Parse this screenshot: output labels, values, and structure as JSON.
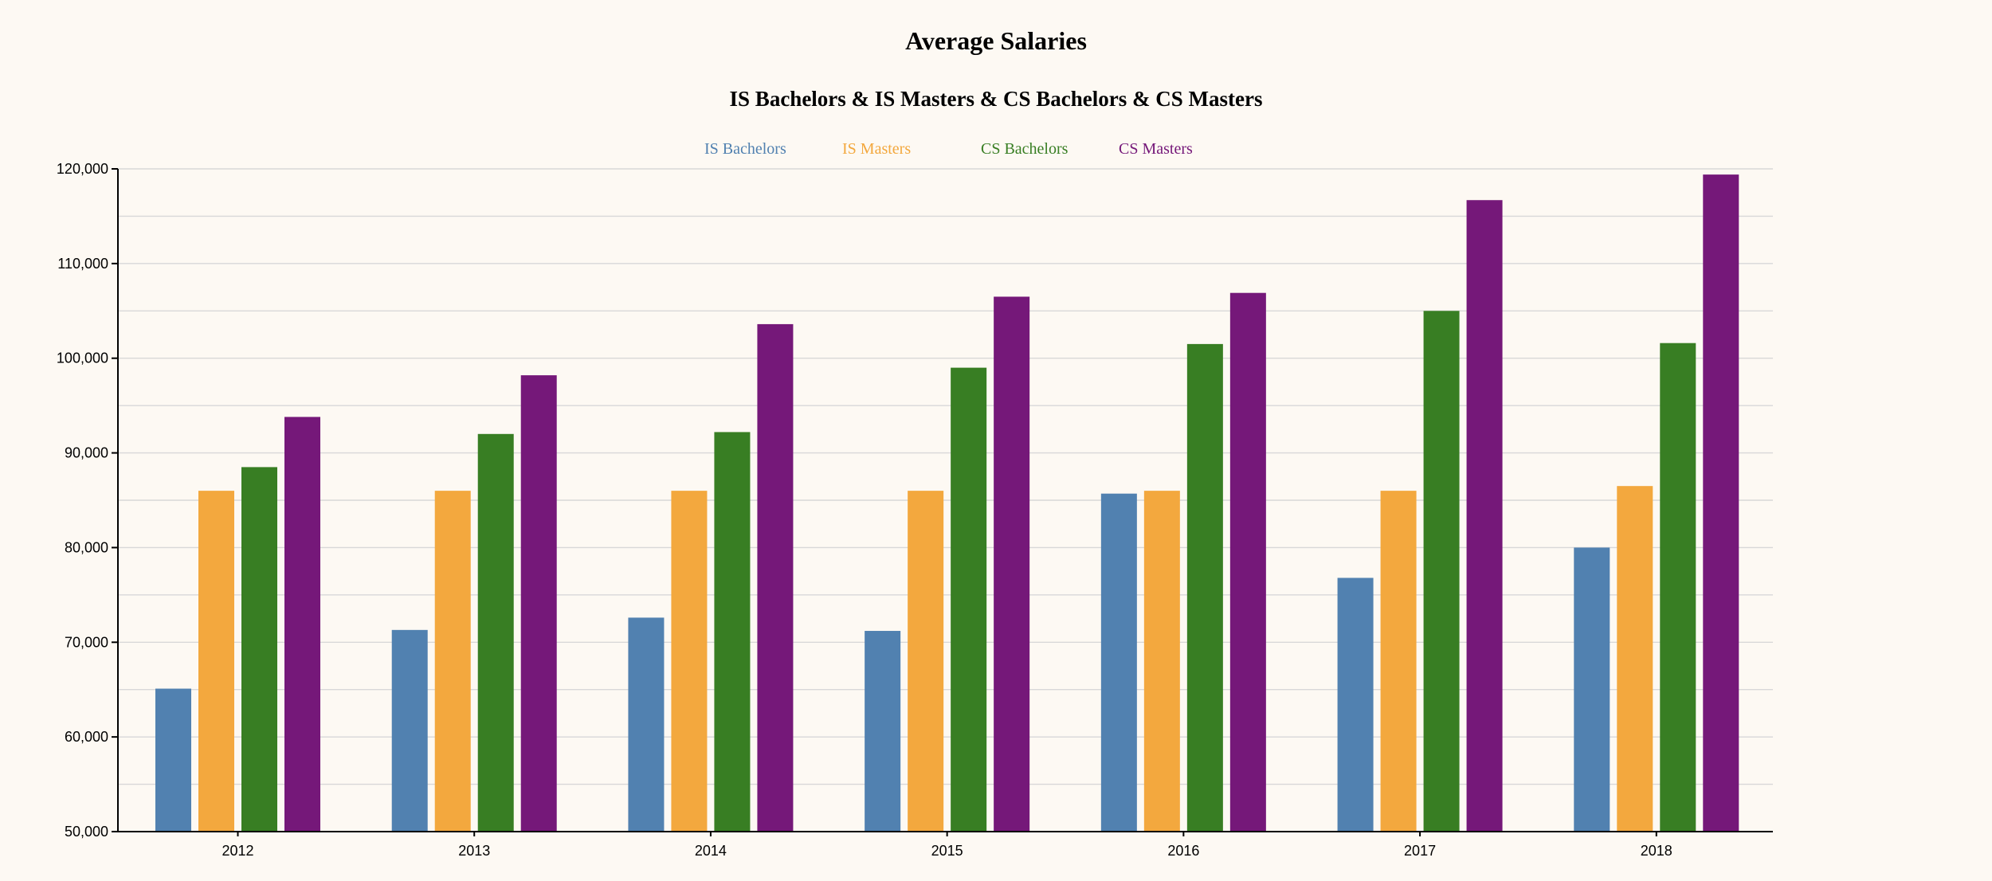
{
  "chart_data": {
    "type": "bar",
    "title": "Average Salaries",
    "subtitle": "IS Bachelors & IS Masters & CS Bachelors & CS Masters",
    "xlabel": "",
    "ylabel": "",
    "categories": [
      "2012",
      "2013",
      "2014",
      "2015",
      "2016",
      "2017",
      "2018"
    ],
    "ylim": [
      50000,
      120000
    ],
    "yticks": [
      50000,
      60000,
      70000,
      80000,
      90000,
      100000,
      110000,
      120000
    ],
    "ytick_labels": [
      "50,000",
      "60,000",
      "70,000",
      "80,000",
      "90,000",
      "100,000",
      "110,000",
      "120,000"
    ],
    "grid": true,
    "legend_position": "top-center",
    "series": [
      {
        "name": "IS Bachelors",
        "color": "#5181b0",
        "values": [
          65100,
          71300,
          72600,
          71200,
          85700,
          76800,
          80000
        ]
      },
      {
        "name": "IS Masters",
        "color": "#f3a83e",
        "values": [
          86000,
          86000,
          86000,
          86000,
          86000,
          86000,
          86500
        ]
      },
      {
        "name": "CS Bachelors",
        "color": "#387e23",
        "values": [
          88500,
          92000,
          92200,
          99000,
          101500,
          105000,
          101600
        ]
      },
      {
        "name": "CS Masters",
        "color": "#751879",
        "values": [
          93800,
          98200,
          103600,
          106500,
          106900,
          116700,
          119400
        ]
      }
    ]
  }
}
